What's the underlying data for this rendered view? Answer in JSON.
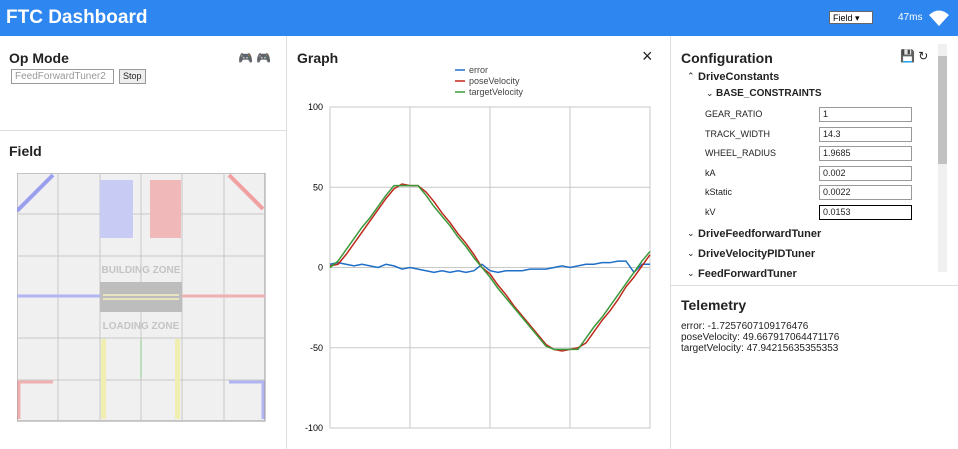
{
  "header": {
    "title": "FTC Dashboard",
    "field_select": "Field",
    "latency": "47ms"
  },
  "op_mode": {
    "title": "Op Mode",
    "selected": "FeedForwardTuner2",
    "button": "Stop"
  },
  "field": {
    "title": "Field",
    "zones": [
      "BUILDING ZONE",
      "LOADING ZONE"
    ]
  },
  "graph": {
    "title": "Graph",
    "close": "×"
  },
  "chart_data": {
    "type": "line",
    "series": [
      {
        "name": "error",
        "color": "#1f6fc8",
        "values": [
          2,
          3,
          2,
          1,
          2,
          1,
          0,
          2,
          1,
          -1,
          0,
          -1,
          -2,
          -3,
          -2,
          -3,
          -2,
          -3,
          -2,
          2,
          -2,
          -3,
          -2,
          -2,
          -2,
          -1,
          -1,
          -1,
          0,
          1,
          0,
          1,
          2,
          2,
          3,
          3,
          4,
          4,
          -3,
          2,
          2
        ]
      },
      {
        "name": "poseVelocity",
        "color": "#c0281c",
        "values": [
          1,
          2,
          8,
          15,
          22,
          29,
          36,
          43,
          49,
          52,
          51,
          51,
          47,
          41,
          34,
          28,
          21,
          15,
          8,
          0,
          -4,
          -11,
          -17,
          -24,
          -30,
          -36,
          -42,
          -48,
          -51,
          -52,
          -51,
          -50,
          -47,
          -40,
          -33,
          -27,
          -20,
          -12,
          -6,
          1,
          8
        ]
      },
      {
        "name": "targetVelocity",
        "color": "#3a9a3a",
        "values": [
          0,
          4,
          11,
          18,
          25,
          31,
          38,
          45,
          51,
          51,
          51,
          51,
          45,
          38,
          32,
          26,
          19,
          13,
          6,
          0,
          -6,
          -13,
          -19,
          -25,
          -31,
          -37,
          -43,
          -49,
          -51,
          -51,
          -51,
          -51,
          -44,
          -37,
          -31,
          -24,
          -17,
          -10,
          -3,
          4,
          10
        ]
      }
    ],
    "ylim": [
      -100,
      100
    ],
    "yticks": [
      100,
      50,
      0,
      -50,
      -100
    ],
    "grid": true,
    "legend": "top"
  },
  "configuration": {
    "title": "Configuration",
    "groups": [
      {
        "label": "DriveConstants",
        "subgroup": "BASE_CONSTRAINTS",
        "fields": [
          {
            "name": "GEAR_RATIO",
            "value": "1"
          },
          {
            "name": "TRACK_WIDTH",
            "value": "14.3"
          },
          {
            "name": "WHEEL_RADIUS",
            "value": "1.9685"
          },
          {
            "name": "kA",
            "value": "0.002"
          },
          {
            "name": "kStatic",
            "value": "0.0022"
          },
          {
            "name": "kV",
            "value": "0.0153"
          }
        ]
      },
      {
        "label": "DriveFeedforwardTuner"
      },
      {
        "label": "DriveVelocityPIDTuner"
      },
      {
        "label": "FeedForwardTuner"
      }
    ]
  },
  "telemetry": {
    "title": "Telemetry",
    "lines": [
      "error: -1.7257607109176476",
      "poseVelocity: 49.667917064471176",
      "targetVelocity: 47.94215635355353"
    ]
  }
}
